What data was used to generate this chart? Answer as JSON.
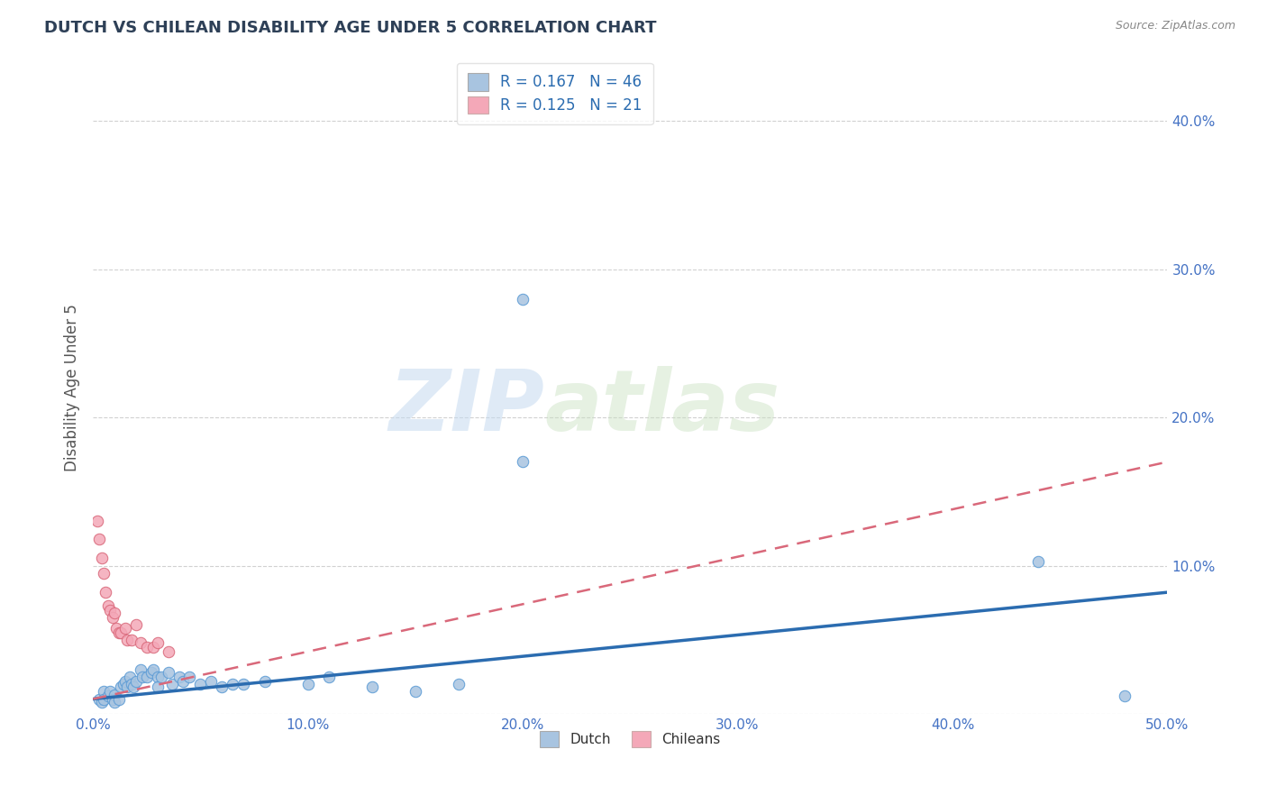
{
  "title": "DUTCH VS CHILEAN DISABILITY AGE UNDER 5 CORRELATION CHART",
  "source": "Source: ZipAtlas.com",
  "ylabel": "Disability Age Under 5",
  "xlim": [
    0.0,
    0.5
  ],
  "ylim": [
    0.0,
    0.44
  ],
  "xticks": [
    0.0,
    0.1,
    0.2,
    0.3,
    0.4,
    0.5
  ],
  "yticks": [
    0.0,
    0.1,
    0.2,
    0.3,
    0.4
  ],
  "xtick_labels": [
    "0.0%",
    "10.0%",
    "20.0%",
    "30.0%",
    "40.0%",
    "50.0%"
  ],
  "ytick_labels_right": [
    "",
    "10.0%",
    "20.0%",
    "30.0%",
    "40.0%"
  ],
  "dutch_color": "#a8c4e0",
  "chilean_color": "#f4a8b8",
  "dutch_scatter": [
    [
      0.003,
      0.01
    ],
    [
      0.004,
      0.008
    ],
    [
      0.005,
      0.015
    ],
    [
      0.005,
      0.01
    ],
    [
      0.007,
      0.012
    ],
    [
      0.008,
      0.015
    ],
    [
      0.009,
      0.01
    ],
    [
      0.01,
      0.013
    ],
    [
      0.01,
      0.008
    ],
    [
      0.012,
      0.01
    ],
    [
      0.013,
      0.018
    ],
    [
      0.014,
      0.02
    ],
    [
      0.015,
      0.022
    ],
    [
      0.016,
      0.018
    ],
    [
      0.017,
      0.025
    ],
    [
      0.018,
      0.02
    ],
    [
      0.019,
      0.018
    ],
    [
      0.02,
      0.022
    ],
    [
      0.022,
      0.03
    ],
    [
      0.023,
      0.025
    ],
    [
      0.025,
      0.025
    ],
    [
      0.027,
      0.028
    ],
    [
      0.028,
      0.03
    ],
    [
      0.03,
      0.025
    ],
    [
      0.03,
      0.018
    ],
    [
      0.032,
      0.025
    ],
    [
      0.035,
      0.028
    ],
    [
      0.037,
      0.02
    ],
    [
      0.04,
      0.025
    ],
    [
      0.042,
      0.022
    ],
    [
      0.045,
      0.025
    ],
    [
      0.05,
      0.02
    ],
    [
      0.055,
      0.022
    ],
    [
      0.06,
      0.018
    ],
    [
      0.065,
      0.02
    ],
    [
      0.07,
      0.02
    ],
    [
      0.08,
      0.022
    ],
    [
      0.1,
      0.02
    ],
    [
      0.11,
      0.025
    ],
    [
      0.13,
      0.018
    ],
    [
      0.15,
      0.015
    ],
    [
      0.17,
      0.02
    ],
    [
      0.2,
      0.17
    ],
    [
      0.2,
      0.28
    ],
    [
      0.44,
      0.103
    ],
    [
      0.48,
      0.012
    ]
  ],
  "chilean_scatter": [
    [
      0.002,
      0.13
    ],
    [
      0.003,
      0.118
    ],
    [
      0.004,
      0.105
    ],
    [
      0.005,
      0.095
    ],
    [
      0.006,
      0.082
    ],
    [
      0.007,
      0.073
    ],
    [
      0.008,
      0.07
    ],
    [
      0.009,
      0.065
    ],
    [
      0.01,
      0.068
    ],
    [
      0.011,
      0.058
    ],
    [
      0.012,
      0.055
    ],
    [
      0.013,
      0.055
    ],
    [
      0.015,
      0.058
    ],
    [
      0.016,
      0.05
    ],
    [
      0.018,
      0.05
    ],
    [
      0.02,
      0.06
    ],
    [
      0.022,
      0.048
    ],
    [
      0.025,
      0.045
    ],
    [
      0.028,
      0.045
    ],
    [
      0.03,
      0.048
    ],
    [
      0.035,
      0.042
    ]
  ],
  "dutch_R": 0.167,
  "dutch_N": 46,
  "chilean_R": 0.125,
  "chilean_N": 21,
  "dutch_line_color": "#2b6cb0",
  "chilean_line_color": "#d9687a",
  "legend_dutch_label": "Dutch",
  "legend_chilean_label": "Chileans",
  "watermark_zip": "ZIP",
  "watermark_atlas": "atlas",
  "title_color": "#2e4057",
  "axis_label_color": "#555555",
  "tick_color": "#4472c4",
  "grid_color": "#cccccc",
  "background_color": "#ffffff"
}
